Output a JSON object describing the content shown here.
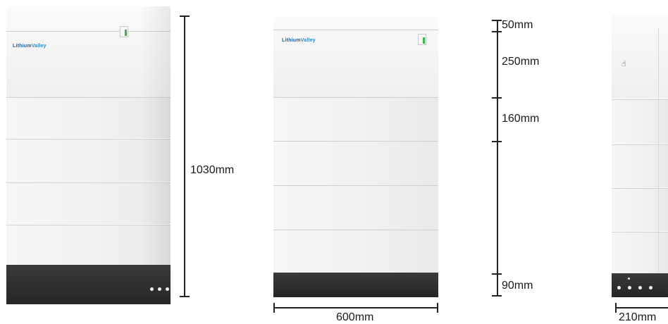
{
  "colors": {
    "body": "#f1f1f1",
    "base": "#2b2b2b",
    "seam": "#cfcfcf",
    "logo": "#1f5fa8",
    "indicator": "#3cb54a",
    "line": "#222222"
  },
  "views": {
    "perspective": {
      "logo_text": "Lithium",
      "logo_accent": "Valley",
      "height_label": "1030mm"
    },
    "front": {
      "logo_text": "Lithium",
      "logo_accent": "Valley",
      "width_label": "600mm",
      "segments": [
        "50mm",
        "250mm",
        "160mm",
        "90mm"
      ]
    },
    "side": {
      "depth_label": "210mm",
      "press_icon": "hand-pointer-icon"
    }
  }
}
